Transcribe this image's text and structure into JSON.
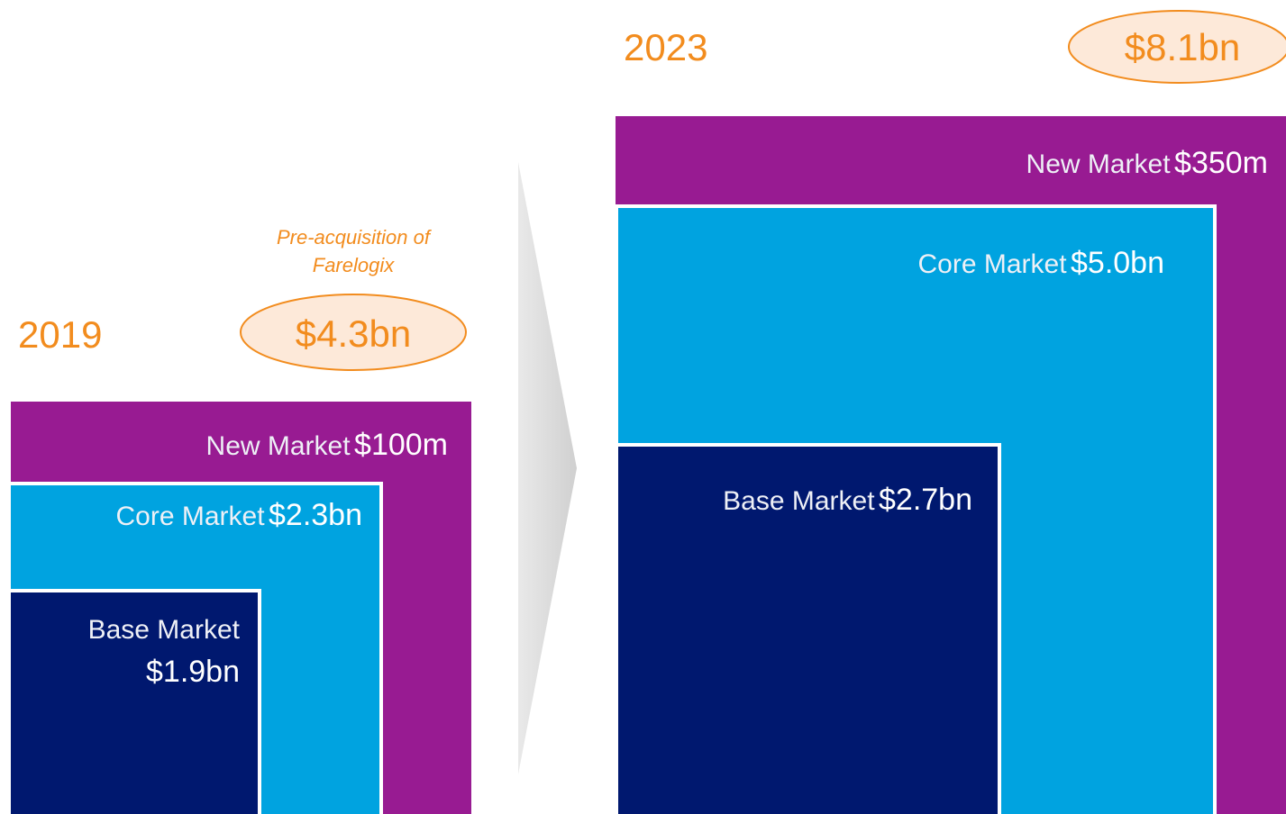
{
  "panels": [
    {
      "year": "2019",
      "total": "$4.3bn",
      "note": [
        "Pre-acquisition of",
        "Farelogix"
      ],
      "segments": [
        {
          "label": "New Market",
          "value": "$100m"
        },
        {
          "label": "Core Market",
          "value": "$2.3bn"
        },
        {
          "label": "Base Market",
          "value": "$1.9bn"
        }
      ]
    },
    {
      "year": "2023",
      "total": "$8.1bn",
      "segments": [
        {
          "label": "New Market",
          "value": "$350m"
        },
        {
          "label": "Core Market",
          "value": "$5.0bn"
        },
        {
          "label": "Base Market",
          "value": "$2.7bn"
        }
      ]
    }
  ]
}
